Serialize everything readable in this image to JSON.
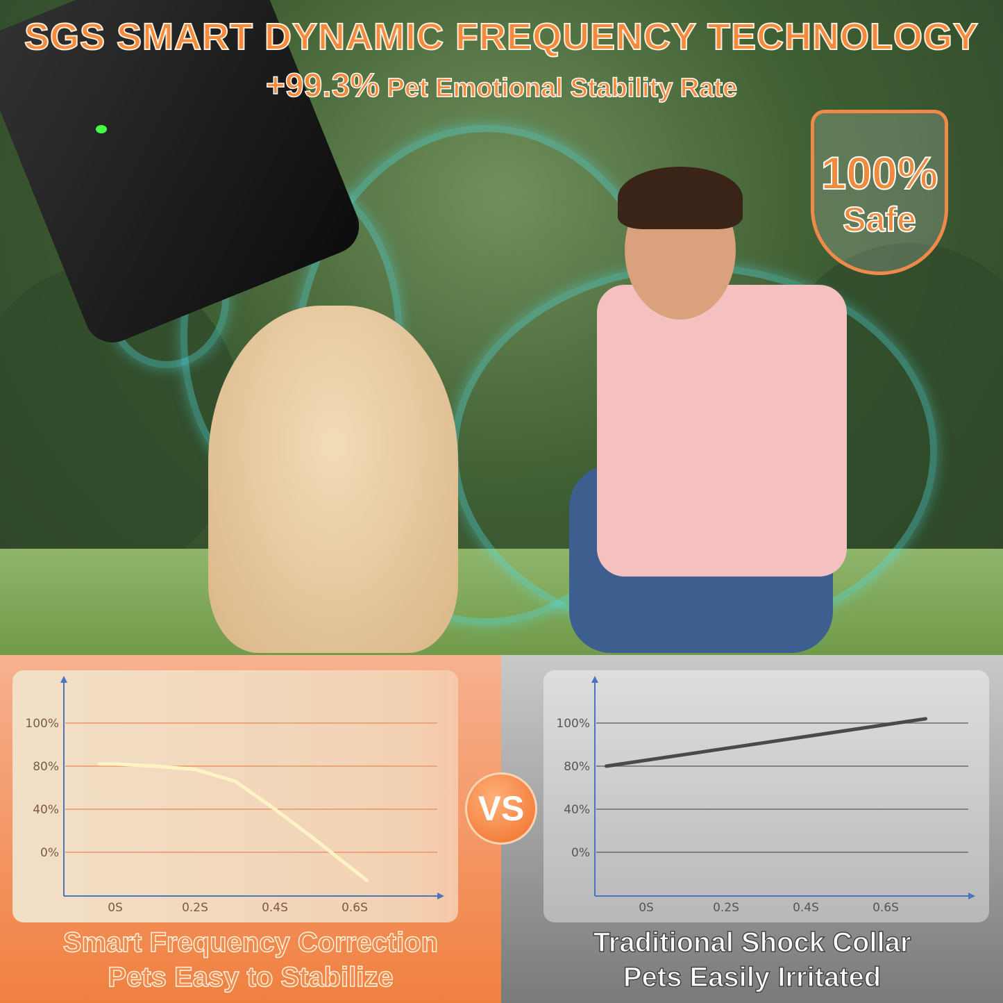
{
  "header": {
    "title": "SGS SMART DYNAMIC FREQUENCY TECHNOLOGY",
    "stat_value": "+99.3%",
    "stat_label": "Pet Emotional Stability Rate"
  },
  "badge": {
    "line1": "100%",
    "line2": "Safe",
    "color": "#f08a3c"
  },
  "vs_label": "VS",
  "colors": {
    "left_panel": "#f08040",
    "right_panel": "#8a8a8a",
    "axis": "#4a74c0",
    "left_line": "#fff3c4",
    "right_line": "#4a4a4a"
  },
  "chart_data": [
    {
      "type": "line",
      "y_ticks": [
        "100%",
        "80%",
        "40%",
        "0%"
      ],
      "x_ticks": [
        "0S",
        "0.2S",
        "0.4S",
        "0.6S"
      ],
      "grid": true,
      "series": [
        {
          "x": [
            -0.04,
            0,
            0.1,
            0.2,
            0.3,
            0.4,
            0.5,
            0.63
          ],
          "y": [
            81,
            81,
            80,
            77,
            66,
            40,
            12,
            -26
          ]
        }
      ],
      "caption": [
        "Smart Frequency Correction",
        "Pets Easy to Stabilize"
      ]
    },
    {
      "type": "line",
      "y_ticks": [
        "100%",
        "80%",
        "40%",
        "0%"
      ],
      "x_ticks": [
        "0S",
        "0.2S",
        "0.4S",
        "0.6S"
      ],
      "grid": true,
      "series": [
        {
          "x": [
            -0.1,
            0.7
          ],
          "y": [
            80,
            102
          ]
        }
      ],
      "caption": [
        "Traditional Shock Collar",
        "Pets Easily Irritated"
      ]
    }
  ]
}
